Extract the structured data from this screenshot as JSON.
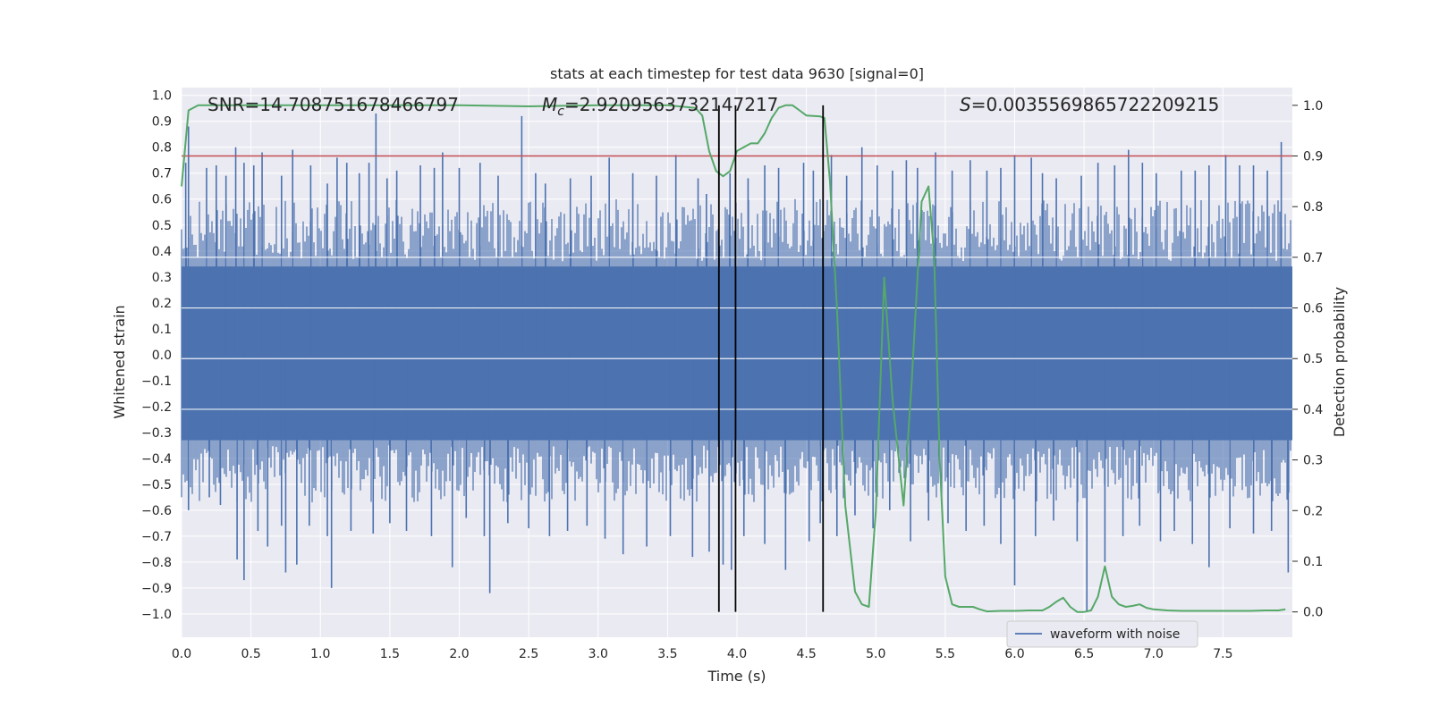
{
  "chart_data": {
    "type": "line",
    "title": "stats at each timestep for test data 9630 [signal=0]",
    "xlabel": "Time (s)",
    "ylabel": "Whitened strain",
    "y2label": "Detection probability",
    "xlim": [
      0.0,
      8.0
    ],
    "ylim": [
      -1.09,
      1.03
    ],
    "y2lim": [
      -0.05,
      1.035
    ],
    "grid": true,
    "xticks": [
      "0.0",
      "0.5",
      "1.0",
      "1.5",
      "2.0",
      "2.5",
      "3.0",
      "3.5",
      "4.0",
      "4.5",
      "5.0",
      "5.5",
      "6.0",
      "6.5",
      "7.0",
      "7.5"
    ],
    "yticks": [
      "1.0",
      "0.9",
      "0.8",
      "0.7",
      "0.6",
      "0.5",
      "0.4",
      "0.3",
      "0.2",
      "0.1",
      "0.0",
      "−0.1",
      "−0.2",
      "−0.3",
      "−0.4",
      "−0.5",
      "−0.6",
      "−0.7",
      "−0.8",
      "−0.9",
      "−1.0"
    ],
    "y2ticks": [
      "0.0",
      "0.1",
      "0.2",
      "0.3",
      "0.4",
      "0.5",
      "0.6",
      "0.7",
      "0.8",
      "0.9",
      "1.0"
    ],
    "annotations": {
      "snr": "SNR=14.708751678466797",
      "mc": "M_c=2.9209563732147217",
      "s": "S=0.0035569865722209215"
    },
    "threshold_line": {
      "y2": 0.9,
      "color": "#c44e52"
    },
    "vertical_lines_x": [
      3.87,
      3.99,
      4.62
    ],
    "legend": {
      "position": "lower-right",
      "entries": [
        "waveform with noise"
      ]
    },
    "series": [
      {
        "name": "waveform with noise",
        "axis": "left",
        "color": "#4c72b0",
        "core_upper": 0.34,
        "core_lower": -0.33,
        "peaks_upper": [
          [
            0.03,
            0.74
          ],
          [
            0.05,
            0.88
          ],
          [
            0.18,
            0.72
          ],
          [
            0.25,
            0.73
          ],
          [
            0.32,
            0.69
          ],
          [
            0.39,
            0.8
          ],
          [
            0.45,
            0.74
          ],
          [
            0.52,
            0.73
          ],
          [
            0.58,
            0.78
          ],
          [
            0.72,
            0.69
          ],
          [
            0.8,
            0.79
          ],
          [
            0.93,
            0.73
          ],
          [
            1.05,
            0.66
          ],
          [
            1.12,
            0.76
          ],
          [
            1.19,
            0.74
          ],
          [
            1.28,
            0.7
          ],
          [
            1.35,
            0.74
          ],
          [
            1.4,
            0.93
          ],
          [
            1.48,
            0.68
          ],
          [
            1.55,
            0.71
          ],
          [
            1.72,
            0.73
          ],
          [
            1.82,
            0.72
          ],
          [
            1.88,
            0.78
          ],
          [
            2.0,
            0.72
          ],
          [
            2.15,
            0.74
          ],
          [
            2.28,
            0.69
          ],
          [
            2.45,
            0.92
          ],
          [
            2.55,
            0.7
          ],
          [
            2.62,
            0.66
          ],
          [
            2.8,
            0.68
          ],
          [
            2.95,
            0.69
          ],
          [
            3.08,
            0.76
          ],
          [
            3.25,
            0.7
          ],
          [
            3.42,
            0.69
          ],
          [
            3.56,
            0.77
          ],
          [
            3.72,
            0.68
          ],
          [
            3.78,
            0.62
          ],
          [
            3.95,
            0.7
          ],
          [
            4.08,
            0.68
          ],
          [
            4.2,
            0.73
          ],
          [
            4.3,
            0.72
          ],
          [
            4.48,
            0.74
          ],
          [
            4.55,
            0.71
          ],
          [
            4.68,
            0.77
          ],
          [
            4.79,
            0.69
          ],
          [
            4.9,
            0.8
          ],
          [
            5.01,
            0.73
          ],
          [
            5.12,
            0.71
          ],
          [
            5.22,
            0.75
          ],
          [
            5.3,
            0.72
          ],
          [
            5.43,
            0.78
          ],
          [
            5.55,
            0.71
          ],
          [
            5.68,
            0.75
          ],
          [
            5.8,
            0.71
          ],
          [
            5.9,
            0.72
          ],
          [
            6.0,
            0.77
          ],
          [
            6.12,
            0.76
          ],
          [
            6.2,
            0.7
          ],
          [
            6.3,
            0.68
          ],
          [
            6.48,
            0.69
          ],
          [
            6.6,
            0.74
          ],
          [
            6.72,
            0.73
          ],
          [
            6.82,
            0.79
          ],
          [
            6.92,
            0.74
          ],
          [
            7.02,
            0.7
          ],
          [
            7.2,
            0.71
          ],
          [
            7.3,
            0.71
          ],
          [
            7.4,
            0.73
          ],
          [
            7.52,
            0.77
          ],
          [
            7.62,
            0.73
          ],
          [
            7.72,
            0.73
          ],
          [
            7.82,
            0.71
          ],
          [
            7.92,
            0.82
          ]
        ],
        "peaks_lower": [
          [
            0.05,
            -0.6
          ],
          [
            0.2,
            -0.55
          ],
          [
            0.28,
            -0.58
          ],
          [
            0.4,
            -0.79
          ],
          [
            0.45,
            -0.87
          ],
          [
            0.55,
            -0.68
          ],
          [
            0.62,
            -0.74
          ],
          [
            0.72,
            -0.66
          ],
          [
            0.75,
            -0.84
          ],
          [
            0.83,
            -0.81
          ],
          [
            0.92,
            -0.66
          ],
          [
            1.05,
            -0.7
          ],
          [
            1.08,
            -0.9
          ],
          [
            1.22,
            -0.68
          ],
          [
            1.38,
            -0.69
          ],
          [
            1.5,
            -0.65
          ],
          [
            1.62,
            -0.68
          ],
          [
            1.8,
            -0.7
          ],
          [
            1.95,
            -0.82
          ],
          [
            2.05,
            -0.63
          ],
          [
            2.18,
            -0.7
          ],
          [
            2.22,
            -0.92
          ],
          [
            2.35,
            -0.65
          ],
          [
            2.5,
            -0.67
          ],
          [
            2.65,
            -0.7
          ],
          [
            2.78,
            -0.68
          ],
          [
            2.92,
            -0.66
          ],
          [
            3.05,
            -0.71
          ],
          [
            3.18,
            -0.77
          ],
          [
            3.35,
            -0.74
          ],
          [
            3.52,
            -0.7
          ],
          [
            3.68,
            -0.78
          ],
          [
            3.8,
            -0.76
          ],
          [
            3.9,
            -0.81
          ],
          [
            3.96,
            -0.83
          ],
          [
            4.05,
            -0.7
          ],
          [
            4.2,
            -0.73
          ],
          [
            4.35,
            -0.83
          ],
          [
            4.52,
            -0.72
          ],
          [
            4.6,
            -0.65
          ],
          [
            4.72,
            -0.7
          ],
          [
            4.85,
            -0.62
          ],
          [
            4.98,
            -0.67
          ],
          [
            5.1,
            -0.6
          ],
          [
            5.25,
            -0.72
          ],
          [
            5.38,
            -0.64
          ],
          [
            5.52,
            -0.65
          ],
          [
            5.65,
            -0.68
          ],
          [
            5.78,
            -0.66
          ],
          [
            5.9,
            -0.73
          ],
          [
            6.0,
            -0.89
          ],
          [
            6.15,
            -0.7
          ],
          [
            6.28,
            -0.64
          ],
          [
            6.45,
            -0.72
          ],
          [
            6.52,
            -0.99
          ],
          [
            6.65,
            -0.8
          ],
          [
            6.78,
            -0.7
          ],
          [
            6.9,
            -0.66
          ],
          [
            7.05,
            -0.72
          ],
          [
            7.15,
            -0.68
          ],
          [
            7.28,
            -0.73
          ],
          [
            7.4,
            -0.82
          ],
          [
            7.55,
            -0.67
          ],
          [
            7.72,
            -0.69
          ],
          [
            7.85,
            -0.68
          ],
          [
            7.97,
            -0.84
          ]
        ]
      },
      {
        "name": "",
        "axis": "right",
        "color": "#55a868",
        "x": [
          0.0,
          0.05,
          0.12,
          0.5,
          1.0,
          1.5,
          2.0,
          2.5,
          3.0,
          3.5,
          3.7,
          3.75,
          3.8,
          3.85,
          3.9,
          3.95,
          4.0,
          4.1,
          4.15,
          4.2,
          4.25,
          4.3,
          4.35,
          4.4,
          4.45,
          4.5,
          4.6,
          4.63,
          4.67,
          4.72,
          4.78,
          4.85,
          4.9,
          4.95,
          5.0,
          5.06,
          5.12,
          5.2,
          5.26,
          5.33,
          5.38,
          5.42,
          5.46,
          5.5,
          5.55,
          5.6,
          5.7,
          5.75,
          5.8,
          5.9,
          6.0,
          6.1,
          6.2,
          6.25,
          6.3,
          6.35,
          6.4,
          6.45,
          6.5,
          6.55,
          6.6,
          6.65,
          6.7,
          6.75,
          6.8,
          6.85,
          6.9,
          6.95,
          7.0,
          7.1,
          7.2,
          7.3,
          7.4,
          7.5,
          7.6,
          7.7,
          7.8,
          7.9,
          7.95
        ],
        "y": [
          0.84,
          0.99,
          1.0,
          1.0,
          1.0,
          1.0,
          1.0,
          0.998,
          1.0,
          1.0,
          0.995,
          0.98,
          0.91,
          0.87,
          0.86,
          0.87,
          0.91,
          0.925,
          0.925,
          0.945,
          0.975,
          0.995,
          1.0,
          1.0,
          0.99,
          0.98,
          0.978,
          0.975,
          0.85,
          0.6,
          0.21,
          0.04,
          0.015,
          0.01,
          0.2,
          0.66,
          0.42,
          0.21,
          0.46,
          0.81,
          0.84,
          0.7,
          0.3,
          0.07,
          0.015,
          0.01,
          0.01,
          0.005,
          0.001,
          0.002,
          0.002,
          0.003,
          0.003,
          0.01,
          0.02,
          0.028,
          0.01,
          0.0,
          0.0,
          0.003,
          0.03,
          0.09,
          0.03,
          0.015,
          0.01,
          0.012,
          0.015,
          0.008,
          0.005,
          0.003,
          0.002,
          0.002,
          0.002,
          0.002,
          0.002,
          0.002,
          0.003,
          0.003,
          0.005
        ]
      }
    ]
  }
}
